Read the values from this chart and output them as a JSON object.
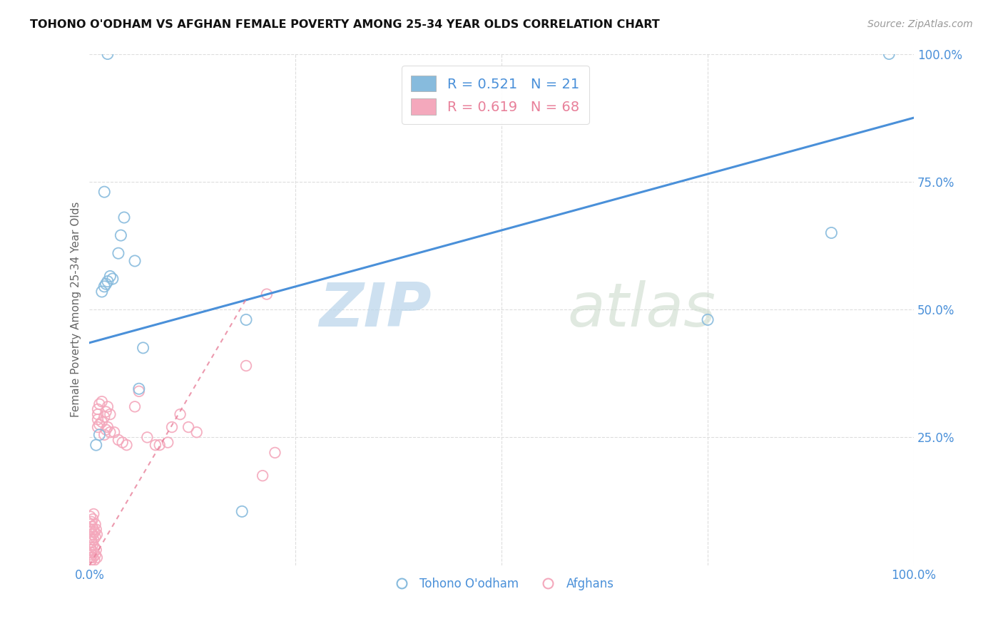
{
  "title": "TOHONO O'ODHAM VS AFGHAN FEMALE POVERTY AMONG 25-34 YEAR OLDS CORRELATION CHART",
  "source": "Source: ZipAtlas.com",
  "ylabel": "Female Poverty Among 25-34 Year Olds",
  "watermark_zip": "ZIP",
  "watermark_atlas": "atlas",
  "xlim": [
    0,
    1
  ],
  "ylim": [
    0,
    1
  ],
  "xticks": [
    0,
    0.25,
    0.5,
    0.75,
    1.0
  ],
  "yticks": [
    0.0,
    0.25,
    0.5,
    0.75,
    1.0
  ],
  "blue_R": 0.521,
  "blue_N": 21,
  "pink_R": 0.619,
  "pink_N": 68,
  "legend_label1": "Tohono O'odham",
  "legend_label2": "Afghans",
  "blue_color": "#87BBDD",
  "pink_color": "#F4A8BC",
  "blue_line_color": "#4A90D9",
  "pink_line_color": "#E8809A",
  "grid_color": "#DDDDDD",
  "blue_scatter_x": [
    0.008,
    0.012,
    0.015,
    0.018,
    0.02,
    0.022,
    0.025,
    0.028,
    0.035,
    0.038,
    0.042,
    0.055,
    0.06,
    0.065,
    0.185,
    0.19,
    0.018,
    0.022,
    0.75,
    0.9,
    0.97
  ],
  "blue_scatter_y": [
    0.235,
    0.255,
    0.535,
    0.545,
    0.55,
    0.555,
    0.565,
    0.56,
    0.61,
    0.645,
    0.68,
    0.595,
    0.345,
    0.425,
    0.105,
    0.48,
    0.73,
    1.0,
    0.48,
    0.65,
    1.0
  ],
  "pink_scatter_x": [
    0.001,
    0.001,
    0.001,
    0.001,
    0.001,
    0.001,
    0.001,
    0.001,
    0.002,
    0.002,
    0.002,
    0.002,
    0.002,
    0.003,
    0.003,
    0.003,
    0.004,
    0.004,
    0.004,
    0.004,
    0.005,
    0.005,
    0.005,
    0.005,
    0.006,
    0.006,
    0.006,
    0.007,
    0.007,
    0.007,
    0.008,
    0.008,
    0.009,
    0.009,
    0.01,
    0.01,
    0.01,
    0.01,
    0.012,
    0.012,
    0.015,
    0.015,
    0.018,
    0.018,
    0.02,
    0.02,
    0.022,
    0.022,
    0.025,
    0.025,
    0.03,
    0.035,
    0.04,
    0.045,
    0.055,
    0.06,
    0.07,
    0.08,
    0.085,
    0.095,
    0.1,
    0.11,
    0.12,
    0.13,
    0.19,
    0.21,
    0.215,
    0.225
  ],
  "pink_scatter_y": [
    0.005,
    0.015,
    0.025,
    0.035,
    0.055,
    0.07,
    0.08,
    0.095,
    0.01,
    0.03,
    0.05,
    0.065,
    0.085,
    0.02,
    0.045,
    0.075,
    0.015,
    0.04,
    0.06,
    0.09,
    0.025,
    0.05,
    0.07,
    0.1,
    0.01,
    0.035,
    0.065,
    0.02,
    0.055,
    0.08,
    0.03,
    0.07,
    0.015,
    0.06,
    0.27,
    0.285,
    0.295,
    0.305,
    0.275,
    0.315,
    0.28,
    0.32,
    0.255,
    0.29,
    0.265,
    0.3,
    0.27,
    0.31,
    0.26,
    0.295,
    0.26,
    0.245,
    0.24,
    0.235,
    0.31,
    0.34,
    0.25,
    0.235,
    0.235,
    0.24,
    0.27,
    0.295,
    0.27,
    0.26,
    0.39,
    0.175,
    0.53,
    0.22
  ],
  "blue_trendline_x": [
    0.0,
    1.0
  ],
  "blue_trendline_y": [
    0.435,
    0.875
  ],
  "pink_trendline_x": [
    0.0,
    0.19
  ],
  "pink_trendline_y": [
    0.0,
    0.52
  ]
}
